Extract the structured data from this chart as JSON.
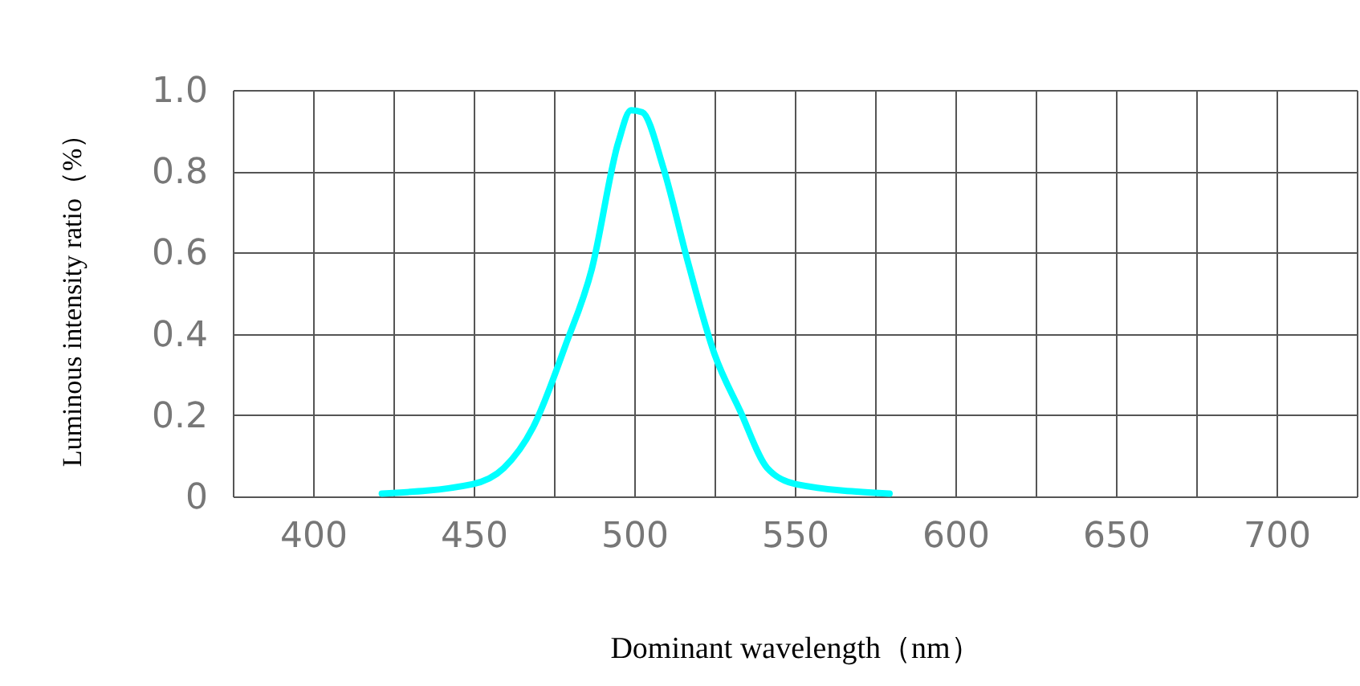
{
  "chart_data": {
    "type": "line",
    "xlabel": "Dominant wavelength（nm）",
    "ylabel": "Luminous intensity ratio（%）",
    "x": [
      421.4,
      449.5,
      459.4,
      468.5,
      478.5,
      486.8,
      495,
      499,
      502.5,
      509,
      516.6,
      525,
      533,
      541.4,
      550.5,
      579.5
    ],
    "series": [
      {
        "color": "#00ffff",
        "values": [
          0.007,
          0.03,
          0.07,
          0.17,
          0.37,
          0.56,
          0.87,
          0.95,
          0.945,
          0.81,
          0.58,
          0.35,
          0.21,
          0.07,
          0.03,
          0.007
        ]
      }
    ],
    "xlim": [
      375,
      725
    ],
    "xticks": [
      {
        "value": 375,
        "label": null
      },
      400,
      {
        "value": 425,
        "label": null
      },
      450,
      {
        "value": 475,
        "label": null
      },
      500,
      {
        "value": 525,
        "label": null
      },
      550,
      {
        "value": 575,
        "label": null
      },
      600,
      {
        "value": 625,
        "label": null
      },
      650,
      {
        "value": 675,
        "label": null
      },
      700,
      {
        "value": 725,
        "label": null
      }
    ],
    "ylim": [
      0,
      1
    ],
    "yticks": [
      0,
      0.2,
      0.4,
      0.6,
      0.8,
      {
        "value": 1,
        "label": "1.0"
      }
    ],
    "grid": true,
    "marker": "none",
    "line_style": "solid"
  }
}
